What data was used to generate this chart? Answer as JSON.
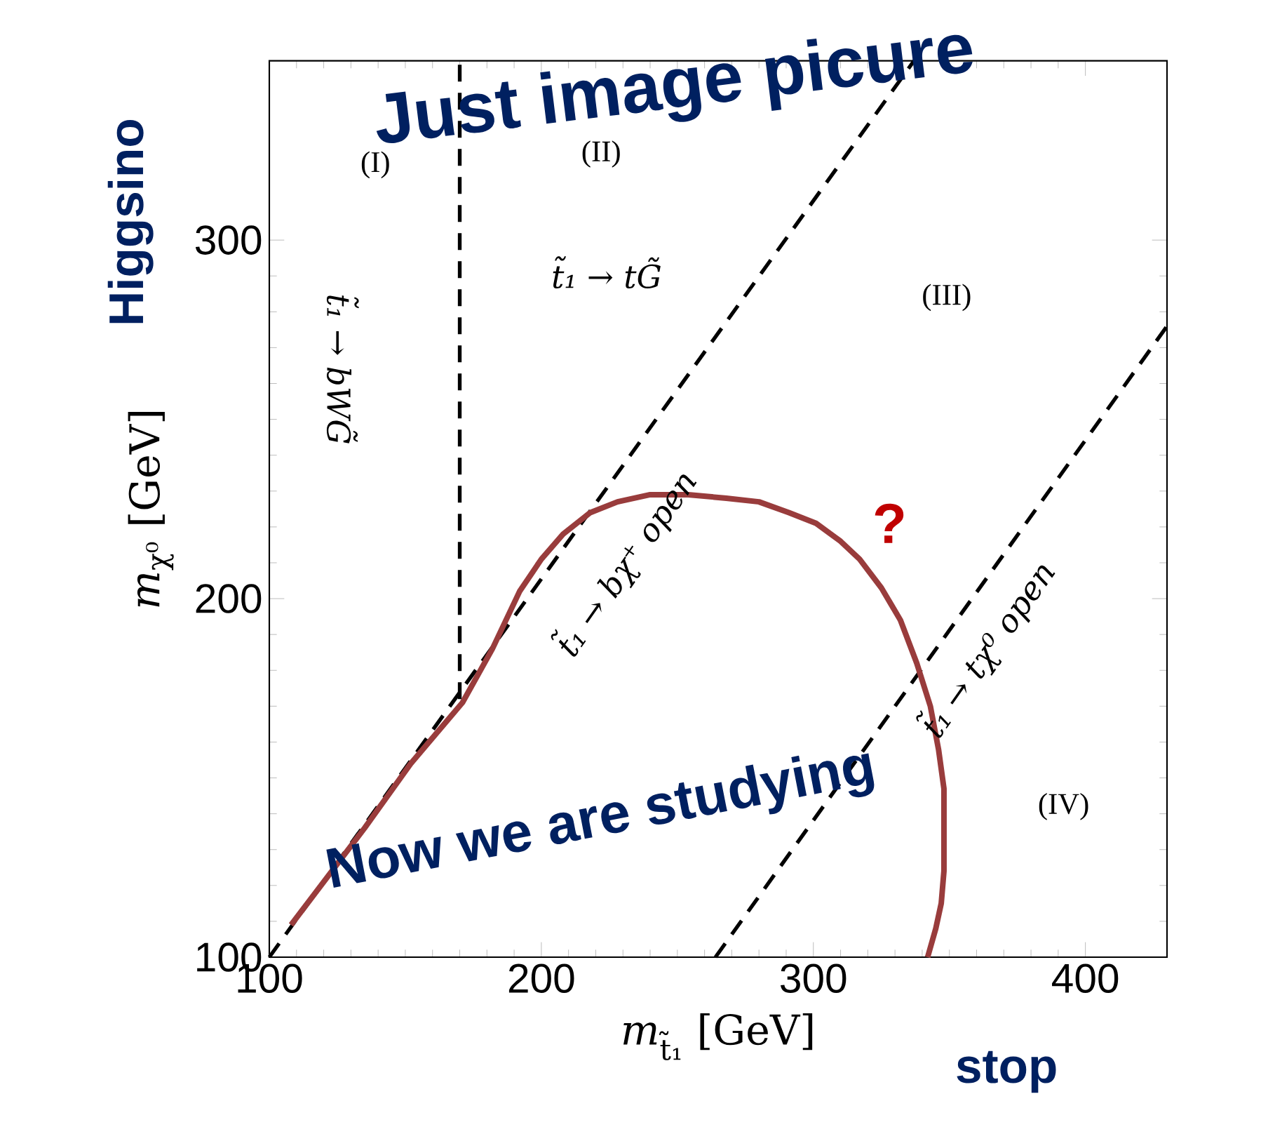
{
  "chart_data": {
    "type": "line",
    "xlabel": "*m*$_{t̃₁}$ [GeV]",
    "ylabel": "*m*$_{χ⁰}$ [GeV]",
    "xlim": [
      100,
      430
    ],
    "ylim": [
      100,
      350
    ],
    "xticks": [
      100,
      200,
      300,
      400
    ],
    "yticks": [
      100,
      200,
      300
    ],
    "grid": false,
    "legend": false,
    "marker": "none",
    "series": [
      {
        "color": "#000000",
        "line_style": "dashed",
        "x": [
          170,
          170
        ],
        "values": [
          172,
          350
        ]
      },
      {
        "color": "#000000",
        "line_style": "dashed",
        "x": [
          100,
          337
        ],
        "values": [
          100,
          350
        ]
      },
      {
        "color": "#000000",
        "line_style": "dashed",
        "x": [
          264,
          430
        ],
        "values": [
          100,
          276
        ]
      },
      {
        "color": "#993c3c",
        "line_style": "solid",
        "x": [
          108,
          135,
          152,
          171,
          182,
          192,
          200,
          208,
          218,
          228,
          240,
          254,
          268,
          280,
          291,
          301,
          310,
          317,
          325,
          332,
          338,
          343,
          346,
          348,
          348,
          347,
          345,
          342
        ],
        "values": [
          109,
          136,
          154,
          171,
          186,
          202,
          211,
          218,
          224,
          227,
          229,
          229,
          228,
          227,
          224,
          221,
          216,
          211,
          203,
          194,
          182,
          170,
          158,
          147,
          124,
          115,
          108,
          100
        ]
      }
    ],
    "annotations": [
      "(I)",
      "(II)",
      "(III)",
      "(IV)",
      "t̃₁ → bWG̃",
      "t̃₁ → tG̃",
      "t̃₁ → bχ⁺ open",
      "t̃₁ → tχ⁰ open",
      "?",
      "Just image picure",
      "Now we are studying",
      "Higgsino",
      "stop"
    ]
  }
}
